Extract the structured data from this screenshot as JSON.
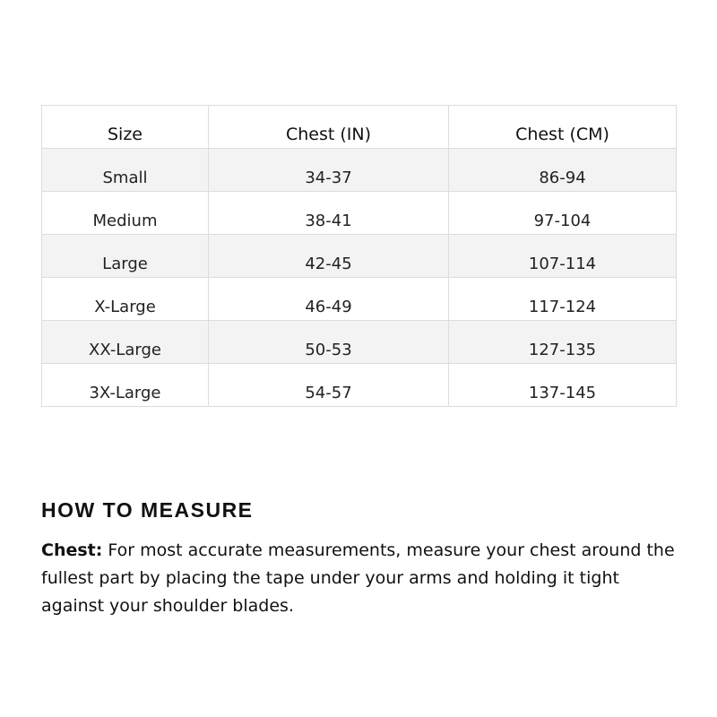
{
  "table": {
    "headers": [
      "Size",
      "Chest (IN)",
      "Chest (CM)"
    ],
    "rows": [
      [
        "Small",
        "34-37",
        "86-94"
      ],
      [
        "Medium",
        "38-41",
        "97-104"
      ],
      [
        "Large",
        "42-45",
        "107-114"
      ],
      [
        "X-Large",
        "46-49",
        "117-124"
      ],
      [
        "XX-Large",
        "50-53",
        "127-135"
      ],
      [
        "3X-Large",
        "54-57",
        "137-145"
      ]
    ]
  },
  "measure": {
    "heading": "HOW TO MEASURE",
    "term": "Chest:",
    "text": " For most accurate measurements, measure your chest around the fullest part by placing the tape under your arms and holding it tight against your shoulder blades."
  }
}
